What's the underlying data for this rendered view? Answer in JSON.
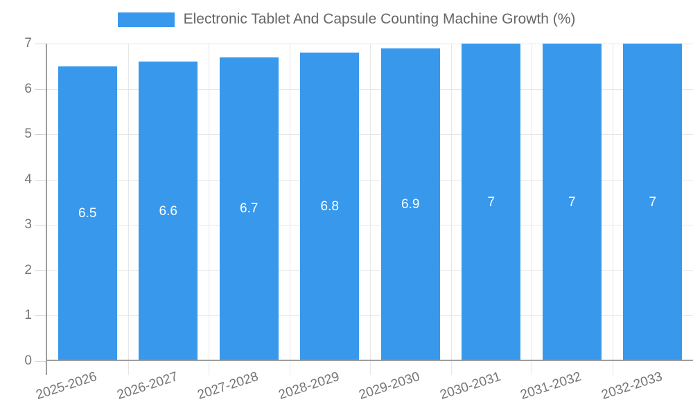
{
  "chart_data": {
    "type": "bar",
    "title": "Electronic Tablet And Capsule Counting Machine Growth (%)",
    "categories": [
      "2025-2026",
      "2026-2027",
      "2027-2028",
      "2028-2029",
      "2029-2030",
      "2030-2031",
      "2031-2032",
      "2032-2033"
    ],
    "values": [
      6.5,
      6.6,
      6.7,
      6.8,
      6.9,
      7,
      7,
      7
    ],
    "bar_labels": [
      "6.5",
      "6.6",
      "6.7",
      "6.8",
      "6.9",
      "7",
      "7",
      "7"
    ],
    "xlabel": "",
    "ylabel": "",
    "ylim": [
      0,
      7
    ],
    "y_ticks": [
      0,
      1,
      2,
      3,
      4,
      5,
      6,
      7
    ],
    "grid": true,
    "legend_position": "top",
    "colors": {
      "bar": "#3898EC",
      "grid": "#E6E6E6",
      "axis": "#9E9E9E",
      "tick_label": "#757575",
      "value_label": "#FFFFFF",
      "legend_text": "#666666",
      "background": "#FFFFFF"
    }
  }
}
